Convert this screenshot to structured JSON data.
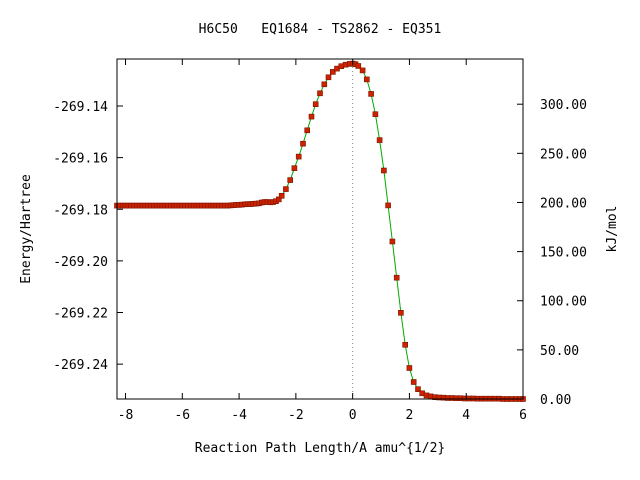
{
  "chart_data": {
    "type": "line",
    "title": "H6C50   EQ1684 - TS2862 - EQ351",
    "xlabel": "Reaction Path Length/A amu^{1/2}",
    "ylabel": "Energy/Hartree",
    "y2label": "kJ/mol",
    "xlim": [
      -8.3,
      6.0
    ],
    "ylim": [
      -269.2535,
      -269.1218
    ],
    "y2lim": [
      0.0,
      346.0
    ],
    "x_ticks": [
      -8,
      -6,
      -4,
      -2,
      0,
      2,
      4,
      6
    ],
    "x_tick_labels": [
      "-8",
      "-6",
      "-4",
      "-2",
      "0",
      "2",
      "4",
      "6"
    ],
    "y_ticks": [
      -269.24,
      -269.22,
      -269.2,
      -269.18,
      -269.16,
      -269.14
    ],
    "y_tick_labels": [
      "-269.24",
      "-269.22",
      "-269.20",
      "-269.18",
      "-269.16",
      "-269.14"
    ],
    "y2_ticks": [
      0,
      50,
      100,
      150,
      200,
      250,
      300
    ],
    "y2_tick_labels": [
      "0.00",
      "50.00",
      "100.00",
      "150.00",
      "200.00",
      "250.00",
      "300.00"
    ],
    "series": [
      {
        "color": "#00aa00",
        "marker_color": "#cc2200",
        "points": [
          [
            -8.3,
            -269.1786
          ],
          [
            -8.2,
            -269.1786
          ],
          [
            -8.1,
            -269.1786
          ],
          [
            -8.0,
            -269.1786
          ],
          [
            -7.9,
            -269.1786
          ],
          [
            -7.8,
            -269.1786
          ],
          [
            -7.7,
            -269.1786
          ],
          [
            -7.6,
            -269.1786
          ],
          [
            -7.5,
            -269.1786
          ],
          [
            -7.4,
            -269.1786
          ],
          [
            -7.3,
            -269.1786
          ],
          [
            -7.2,
            -269.1786
          ],
          [
            -7.1,
            -269.1786
          ],
          [
            -7.0,
            -269.1786
          ],
          [
            -6.9,
            -269.1786
          ],
          [
            -6.8,
            -269.1786
          ],
          [
            -6.7,
            -269.1786
          ],
          [
            -6.6,
            -269.1786
          ],
          [
            -6.5,
            -269.1786
          ],
          [
            -6.4,
            -269.1786
          ],
          [
            -6.3,
            -269.1786
          ],
          [
            -6.2,
            -269.1786
          ],
          [
            -6.1,
            -269.1786
          ],
          [
            -6.0,
            -269.1786
          ],
          [
            -5.9,
            -269.1786
          ],
          [
            -5.8,
            -269.1786
          ],
          [
            -5.7,
            -269.1786
          ],
          [
            -5.6,
            -269.1786
          ],
          [
            -5.5,
            -269.1786
          ],
          [
            -5.4,
            -269.1786
          ],
          [
            -5.3,
            -269.1786
          ],
          [
            -5.2,
            -269.1786
          ],
          [
            -5.1,
            -269.1786
          ],
          [
            -5.0,
            -269.1786
          ],
          [
            -4.9,
            -269.1786
          ],
          [
            -4.8,
            -269.1786
          ],
          [
            -4.7,
            -269.1786
          ],
          [
            -4.6,
            -269.1786
          ],
          [
            -4.5,
            -269.1786
          ],
          [
            -4.4,
            -269.1786
          ],
          [
            -4.3,
            -269.1785
          ],
          [
            -4.2,
            -269.1784
          ],
          [
            -4.1,
            -269.1783
          ],
          [
            -4.0,
            -269.1783
          ],
          [
            -3.9,
            -269.1782
          ],
          [
            -3.8,
            -269.1781
          ],
          [
            -3.7,
            -269.178
          ],
          [
            -3.6,
            -269.178
          ],
          [
            -3.5,
            -269.1779
          ],
          [
            -3.4,
            -269.1778
          ],
          [
            -3.3,
            -269.1777
          ],
          [
            -3.2,
            -269.1774
          ],
          [
            -3.1,
            -269.1772
          ],
          [
            -3.0,
            -269.1772
          ],
          [
            -2.9,
            -269.1773
          ],
          [
            -2.8,
            -269.1772
          ],
          [
            -2.7,
            -269.1769
          ],
          [
            -2.6,
            -269.1762
          ],
          [
            -2.5,
            -269.1748
          ],
          [
            -2.35,
            -269.1722
          ],
          [
            -2.2,
            -269.1687
          ],
          [
            -2.05,
            -269.1641
          ],
          [
            -1.9,
            -269.1596
          ],
          [
            -1.75,
            -269.1546
          ],
          [
            -1.6,
            -269.1494
          ],
          [
            -1.45,
            -269.1441
          ],
          [
            -1.3,
            -269.1393
          ],
          [
            -1.15,
            -269.1351
          ],
          [
            -1.0,
            -269.1316
          ],
          [
            -0.85,
            -269.1289
          ],
          [
            -0.7,
            -269.1268
          ],
          [
            -0.55,
            -269.1255
          ],
          [
            -0.4,
            -269.1246
          ],
          [
            -0.25,
            -269.124
          ],
          [
            -0.1,
            -269.1237
          ],
          [
            0.0,
            -269.1236
          ],
          [
            0.1,
            -269.1238
          ],
          [
            0.2,
            -269.1245
          ],
          [
            0.35,
            -269.1262
          ],
          [
            0.5,
            -269.1297
          ],
          [
            0.65,
            -269.1353
          ],
          [
            0.8,
            -269.1432
          ],
          [
            0.95,
            -269.1532
          ],
          [
            1.1,
            -269.165
          ],
          [
            1.25,
            -269.1785
          ],
          [
            1.4,
            -269.1925
          ],
          [
            1.55,
            -269.2065
          ],
          [
            1.7,
            -269.2201
          ],
          [
            1.85,
            -269.2325
          ],
          [
            2.0,
            -269.2415
          ],
          [
            2.15,
            -269.2469
          ],
          [
            2.3,
            -269.2497
          ],
          [
            2.45,
            -269.2513
          ],
          [
            2.6,
            -269.2521
          ],
          [
            2.75,
            -269.2525
          ],
          [
            2.9,
            -269.2528
          ],
          [
            3.05,
            -269.2529
          ],
          [
            3.2,
            -269.253
          ],
          [
            3.35,
            -269.2531
          ],
          [
            3.5,
            -269.2531
          ],
          [
            3.65,
            -269.2532
          ],
          [
            3.8,
            -269.2532
          ],
          [
            3.95,
            -269.2533
          ],
          [
            4.1,
            -269.2533
          ],
          [
            4.25,
            -269.2533
          ],
          [
            4.4,
            -269.2534
          ],
          [
            4.55,
            -269.2534
          ],
          [
            4.7,
            -269.2534
          ],
          [
            4.85,
            -269.2534
          ],
          [
            5.0,
            -269.2534
          ],
          [
            5.15,
            -269.2534
          ],
          [
            5.3,
            -269.2535
          ],
          [
            5.45,
            -269.2535
          ],
          [
            5.6,
            -269.2535
          ],
          [
            5.75,
            -269.2535
          ],
          [
            5.9,
            -269.2535
          ],
          [
            6.0,
            -269.2535
          ]
        ]
      }
    ],
    "vertical_reference_line_x": 0,
    "grid": false,
    "legend": "none"
  }
}
